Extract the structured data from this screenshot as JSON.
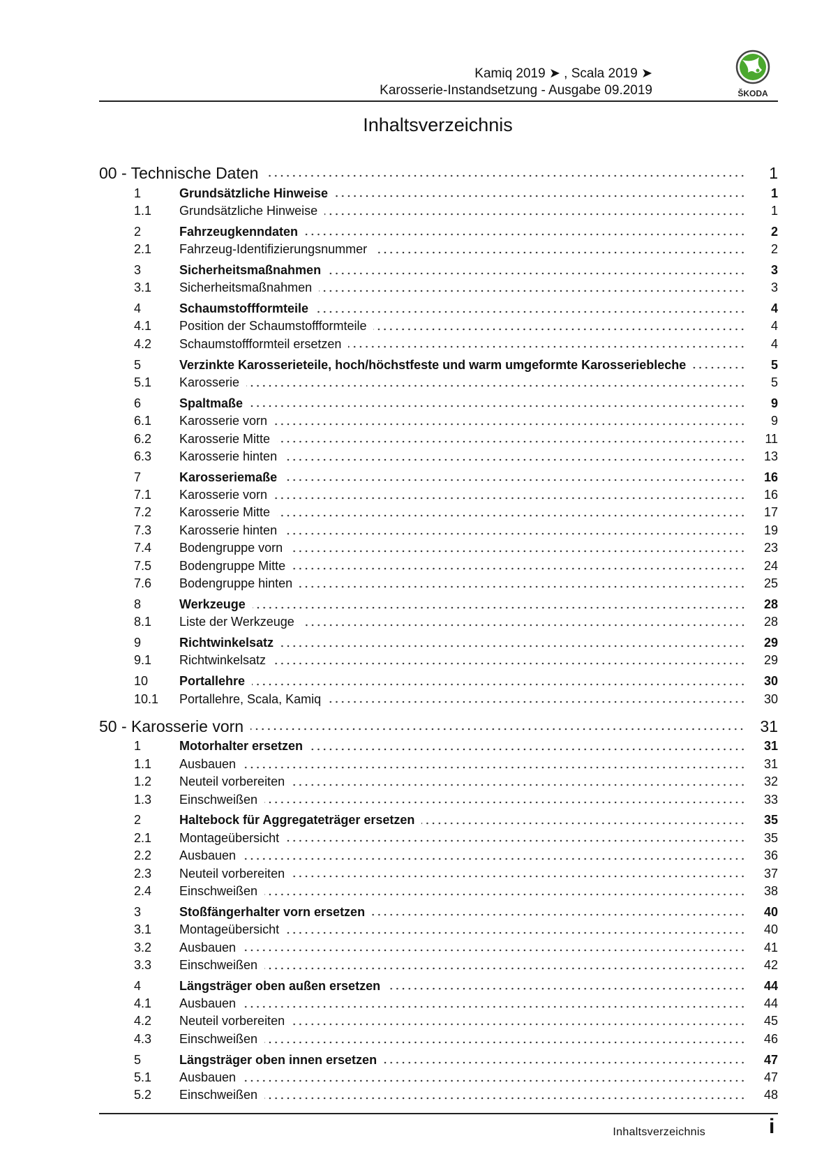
{
  "header": {
    "line1": "Kamiq 2019 ➤ , Scala 2019 ➤",
    "line2": "Karosserie-Instandsetzung - Ausgabe 09.2019",
    "logo_text": "ŠKODA",
    "brand_color": "#4ba82e"
  },
  "title": "Inhaltsverzeichnis",
  "chapters": [
    {
      "label": "00 - Technische Daten",
      "page": "1",
      "entries": [
        {
          "num": "1",
          "title": "Grundsätzliche Hinweise",
          "page": "1",
          "level": 1
        },
        {
          "num": "1.1",
          "title": "Grundsätzliche Hinweise",
          "page": "1",
          "level": 2
        },
        {
          "num": "2",
          "title": "Fahrzeugkenndaten",
          "page": "2",
          "level": 1
        },
        {
          "num": "2.1",
          "title": "Fahrzeug-Identifizierungsnummer",
          "page": "2",
          "level": 2
        },
        {
          "num": "3",
          "title": "Sicherheitsmaßnahmen",
          "page": "3",
          "level": 1
        },
        {
          "num": "3.1",
          "title": "Sicherheitsmaßnahmen",
          "page": "3",
          "level": 2
        },
        {
          "num": "4",
          "title": "Schaumstoffformteile",
          "page": "4",
          "level": 1
        },
        {
          "num": "4.1",
          "title": "Position der Schaumstoffformteile",
          "page": "4",
          "level": 2
        },
        {
          "num": "4.2",
          "title": "Schaumstoffformteil ersetzen",
          "page": "4",
          "level": 2
        },
        {
          "num": "5",
          "title": "Verzinkte Karosserieteile, hoch/höchstfeste und warm umgeformte Karosseriebleche",
          "page": "5",
          "level": 1
        },
        {
          "num": "5.1",
          "title": "Karosserie",
          "page": "5",
          "level": 2
        },
        {
          "num": "6",
          "title": "Spaltmaße",
          "page": "9",
          "level": 1
        },
        {
          "num": "6.1",
          "title": "Karosserie vorn",
          "page": "9",
          "level": 2
        },
        {
          "num": "6.2",
          "title": "Karosserie Mitte",
          "page": "11",
          "level": 2
        },
        {
          "num": "6.3",
          "title": "Karosserie hinten",
          "page": "13",
          "level": 2
        },
        {
          "num": "7",
          "title": "Karosseriemaße",
          "page": "16",
          "level": 1
        },
        {
          "num": "7.1",
          "title": "Karosserie vorn",
          "page": "16",
          "level": 2
        },
        {
          "num": "7.2",
          "title": "Karosserie Mitte",
          "page": "17",
          "level": 2
        },
        {
          "num": "7.3",
          "title": "Karosserie hinten",
          "page": "19",
          "level": 2
        },
        {
          "num": "7.4",
          "title": "Bodengruppe vorn",
          "page": "23",
          "level": 2
        },
        {
          "num": "7.5",
          "title": "Bodengruppe Mitte",
          "page": "24",
          "level": 2
        },
        {
          "num": "7.6",
          "title": "Bodengruppe hinten",
          "page": "25",
          "level": 2
        },
        {
          "num": "8",
          "title": "Werkzeuge",
          "page": "28",
          "level": 1
        },
        {
          "num": "8.1",
          "title": "Liste der Werkzeuge",
          "page": "28",
          "level": 2
        },
        {
          "num": "9",
          "title": "Richtwinkelsatz",
          "page": "29",
          "level": 1
        },
        {
          "num": "9.1",
          "title": "Richtwinkelsatz",
          "page": "29",
          "level": 2
        },
        {
          "num": "10",
          "title": "Portallehre",
          "page": "30",
          "level": 1
        },
        {
          "num": "10.1",
          "title": "Portallehre, Scala, Kamiq",
          "page": "30",
          "level": 2
        }
      ]
    },
    {
      "label": "50 - Karosserie vorn",
      "page": "31",
      "entries": [
        {
          "num": "1",
          "title": "Motorhalter ersetzen",
          "page": "31",
          "level": 1
        },
        {
          "num": "1.1",
          "title": "Ausbauen",
          "page": "31",
          "level": 2
        },
        {
          "num": "1.2",
          "title": "Neuteil vorbereiten",
          "page": "32",
          "level": 2
        },
        {
          "num": "1.3",
          "title": "Einschweißen",
          "page": "33",
          "level": 2
        },
        {
          "num": "2",
          "title": "Haltebock für Aggregateträger ersetzen",
          "page": "35",
          "level": 1
        },
        {
          "num": "2.1",
          "title": "Montageübersicht",
          "page": "35",
          "level": 2
        },
        {
          "num": "2.2",
          "title": "Ausbauen",
          "page": "36",
          "level": 2
        },
        {
          "num": "2.3",
          "title": "Neuteil vorbereiten",
          "page": "37",
          "level": 2
        },
        {
          "num": "2.4",
          "title": "Einschweißen",
          "page": "38",
          "level": 2
        },
        {
          "num": "3",
          "title": "Stoßfängerhalter vorn ersetzen",
          "page": "40",
          "level": 1
        },
        {
          "num": "3.1",
          "title": "Montageübersicht",
          "page": "40",
          "level": 2
        },
        {
          "num": "3.2",
          "title": "Ausbauen",
          "page": "41",
          "level": 2
        },
        {
          "num": "3.3",
          "title": "Einschweißen",
          "page": "42",
          "level": 2
        },
        {
          "num": "4",
          "title": "Längsträger oben außen ersetzen",
          "page": "44",
          "level": 1
        },
        {
          "num": "4.1",
          "title": "Ausbauen",
          "page": "44",
          "level": 2
        },
        {
          "num": "4.2",
          "title": "Neuteil vorbereiten",
          "page": "45",
          "level": 2
        },
        {
          "num": "4.3",
          "title": "Einschweißen",
          "page": "46",
          "level": 2
        },
        {
          "num": "5",
          "title": "Längsträger oben innen ersetzen",
          "page": "47",
          "level": 1
        },
        {
          "num": "5.1",
          "title": "Ausbauen",
          "page": "47",
          "level": 2
        },
        {
          "num": "5.2",
          "title": "Einschweißen",
          "page": "48",
          "level": 2
        }
      ]
    }
  ],
  "footer": {
    "label": "Inhaltsverzeichnis",
    "page": "i"
  }
}
